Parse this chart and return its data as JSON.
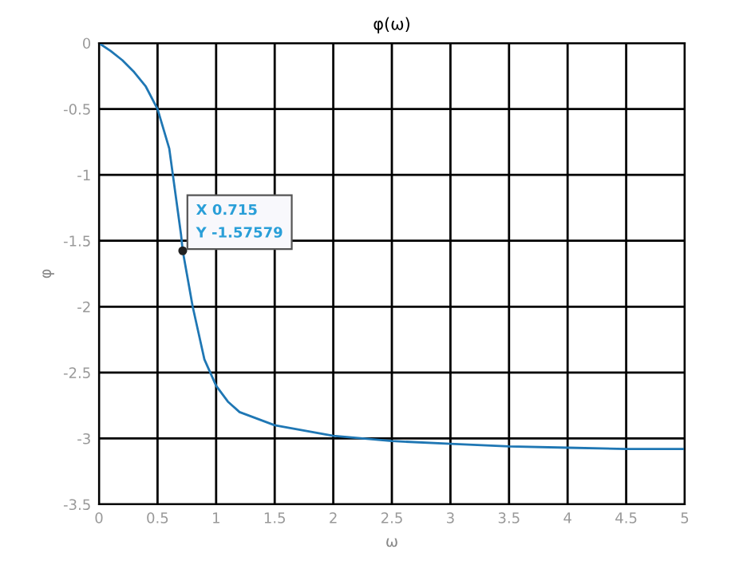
{
  "chart_data": {
    "type": "line",
    "title": "φ(ω)",
    "xlabel": "ω",
    "ylabel": "φ",
    "x": [
      0,
      0.1,
      0.2,
      0.3,
      0.4,
      0.5,
      0.6,
      0.7,
      0.715,
      0.75,
      0.8,
      0.85,
      0.9,
      1,
      1.1,
      1.2,
      1.5,
      2,
      2.5,
      3,
      3.5,
      4,
      4.5,
      5
    ],
    "series": [
      {
        "color": "#1f77b4",
        "values": [
          0,
          -0.06,
          -0.13,
          -0.22,
          -0.33,
          -0.5,
          -0.8,
          -1.45,
          -1.57579,
          -1.75,
          -2.0,
          -2.2,
          -2.4,
          -2.6,
          -2.72,
          -2.8,
          -2.9,
          -2.98,
          -3.02,
          -3.04,
          -3.06,
          -3.07,
          -3.08,
          -3.08
        ]
      }
    ],
    "xlim": [
      0,
      5
    ],
    "xticks": [
      0,
      0.5,
      1,
      1.5,
      2,
      2.5,
      3,
      3.5,
      4,
      4.5,
      5
    ],
    "ylim": [
      -3.5,
      0
    ],
    "yticks": [
      -3.5,
      -3,
      -2.5,
      -2,
      -1.5,
      -1,
      -0.5,
      0
    ],
    "grid": true,
    "marker": "none",
    "line_style": "solid",
    "annotations": [
      {
        "text": "X 0.715\nY -1.57579",
        "x": 0.715,
        "y": -1.57579
      }
    ]
  }
}
